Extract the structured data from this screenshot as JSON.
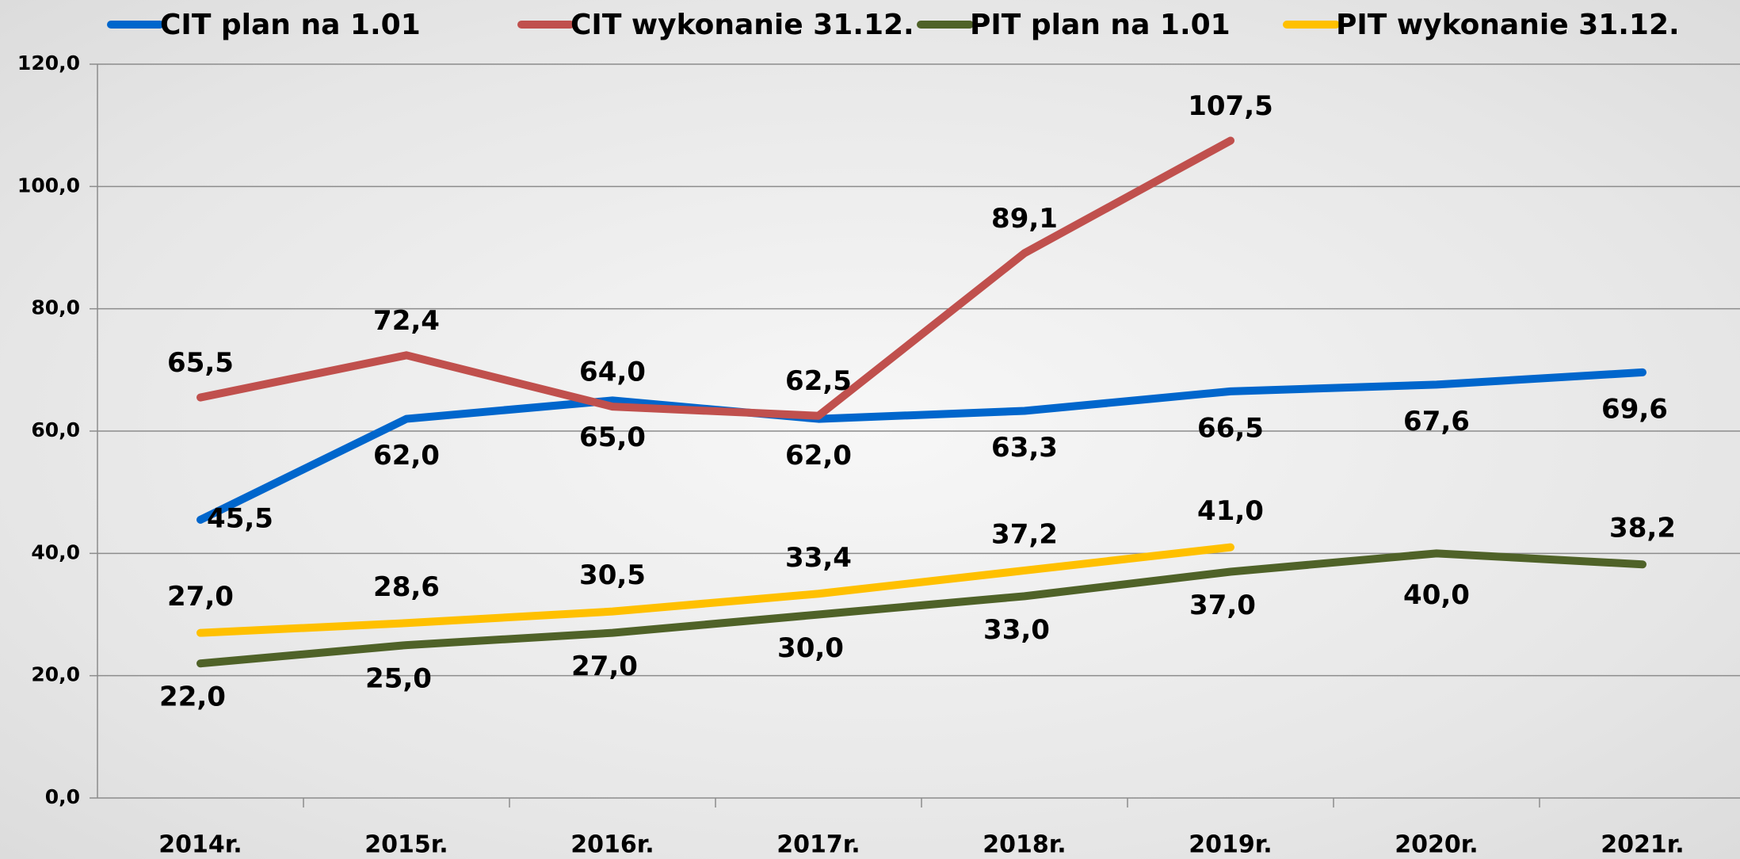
{
  "chart_data": {
    "type": "line",
    "categories": [
      "2014r.",
      "2015r.",
      "2016r.",
      "2017r.",
      "2018r.",
      "2019r.",
      "2020r.",
      "2021r."
    ],
    "series": [
      {
        "name": "CIT plan na 1.01",
        "color": "#0066cc",
        "values": [
          45.5,
          62.0,
          65.0,
          62.0,
          63.3,
          66.5,
          67.6,
          69.6
        ],
        "value_labels": [
          "45,5",
          "62,0",
          "65,0",
          "62,0",
          "63,3",
          "66,5",
          "67,6",
          "69,6"
        ]
      },
      {
        "name": "CIT wykonanie 31.12.",
        "color": "#c0504d",
        "values": [
          65.5,
          72.4,
          64.0,
          62.5,
          89.1,
          107.5,
          null,
          null
        ],
        "value_labels": [
          "65,5",
          "72,4",
          "64,0",
          "62,5",
          "89,1",
          "107,5",
          null,
          null
        ]
      },
      {
        "name": "PIT plan na 1.01",
        "color": "#4f6228",
        "values": [
          22.0,
          25.0,
          27.0,
          30.0,
          33.0,
          37.0,
          40.0,
          38.2
        ],
        "value_labels": [
          "22,0",
          "25,0",
          "27,0",
          "30,0",
          "33,0",
          "37,0",
          "40,0",
          "38,2"
        ]
      },
      {
        "name": "PIT wykonanie 31.12.",
        "color": "#ffc000",
        "values": [
          27.0,
          28.6,
          30.5,
          33.4,
          37.2,
          41.0,
          null,
          null
        ],
        "value_labels": [
          "27,0",
          "28,6",
          "30,5",
          "33,4",
          "37,2",
          "41,0",
          null,
          null
        ]
      }
    ],
    "ylim": [
      0,
      120
    ],
    "yticks": [
      {
        "value": 0,
        "label": "0,0"
      },
      {
        "value": 20,
        "label": "20,0"
      },
      {
        "value": 40,
        "label": "40,0"
      },
      {
        "value": 60,
        "label": "60,0"
      },
      {
        "value": 80,
        "label": "80,0"
      },
      {
        "value": 100,
        "label": "100,0"
      },
      {
        "value": 120,
        "label": "120,0"
      }
    ],
    "grid": true,
    "legend": "top"
  }
}
